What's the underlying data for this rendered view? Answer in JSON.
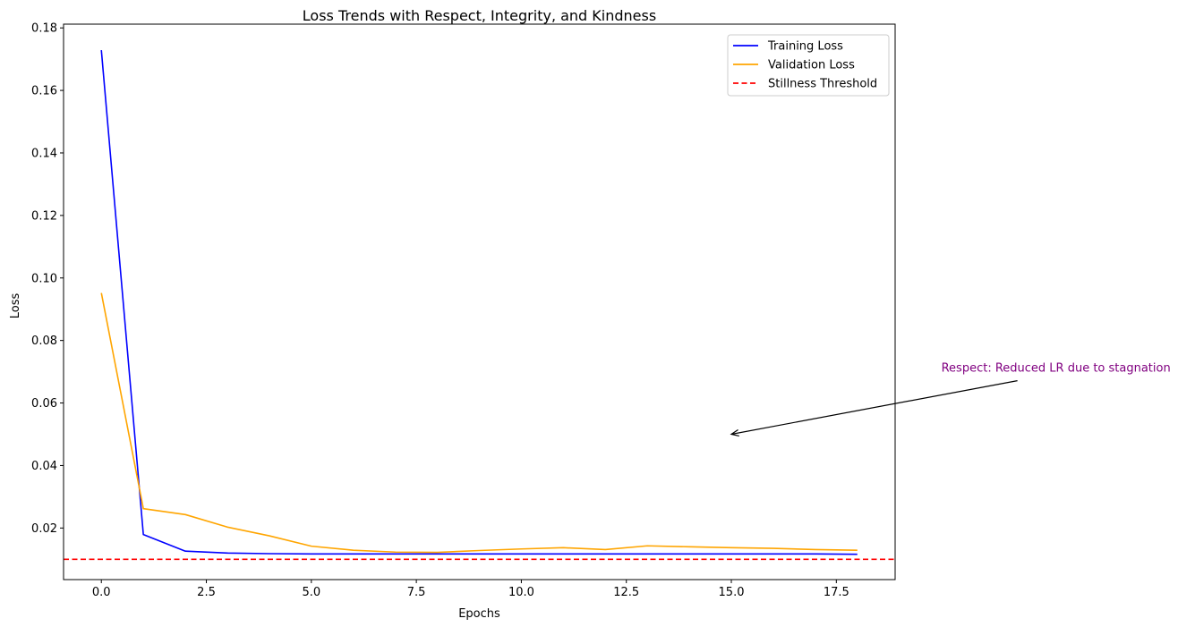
{
  "chart_data": {
    "type": "line",
    "title": "Loss Trends with Respect, Integrity, and Kindness",
    "xlabel": "Epochs",
    "ylabel": "Loss",
    "xlim": [
      -0.9,
      18.9
    ],
    "ylim": [
      0.0035,
      0.1812
    ],
    "x_ticks": [
      0.0,
      2.5,
      5.0,
      7.5,
      10.0,
      12.5,
      15.0,
      17.5
    ],
    "x_tick_labels": [
      "0.0",
      "2.5",
      "5.0",
      "7.5",
      "10.0",
      "12.5",
      "15.0",
      "17.5"
    ],
    "y_ticks": [
      0.02,
      0.04,
      0.06,
      0.08,
      0.1,
      0.12,
      0.14,
      0.16,
      0.18
    ],
    "y_tick_labels": [
      "0.02",
      "0.04",
      "0.06",
      "0.08",
      "0.10",
      "0.12",
      "0.14",
      "0.16",
      "0.18"
    ],
    "grid": false,
    "legend_position": "top-right",
    "series": [
      {
        "name": "Training Loss",
        "color": "#0000ff",
        "style": "solid",
        "x": [
          0,
          1,
          2,
          3,
          4,
          5,
          6,
          7,
          8,
          9,
          10,
          11,
          12,
          13,
          14,
          15,
          16,
          17,
          18
        ],
        "y": [
          0.1729,
          0.0179,
          0.0126,
          0.012,
          0.0118,
          0.0117,
          0.0117,
          0.0117,
          0.0117,
          0.0117,
          0.0117,
          0.0117,
          0.0117,
          0.0117,
          0.0117,
          0.0117,
          0.0117,
          0.0117,
          0.0116
        ]
      },
      {
        "name": "Validation Loss",
        "color": "#ffa500",
        "style": "solid",
        "x": [
          0,
          1,
          2,
          3,
          4,
          5,
          6,
          7,
          8,
          9,
          10,
          11,
          12,
          13,
          14,
          15,
          16,
          17,
          18
        ],
        "y": [
          0.0952,
          0.0262,
          0.0243,
          0.0203,
          0.0175,
          0.0142,
          0.0129,
          0.0123,
          0.0122,
          0.0128,
          0.0133,
          0.0137,
          0.0131,
          0.0143,
          0.014,
          0.0137,
          0.0135,
          0.0131,
          0.0129
        ]
      }
    ],
    "hlines": [
      {
        "name": "Stillness Threshold",
        "color": "#ff0000",
        "style": "dashed",
        "y": 0.01
      }
    ],
    "annotations": [
      {
        "text": "Respect: Reduced LR due to stagnation",
        "color": "#800080",
        "point": [
          15,
          0.05
        ],
        "text_pos": [
          20,
          0.07
        ]
      }
    ]
  }
}
